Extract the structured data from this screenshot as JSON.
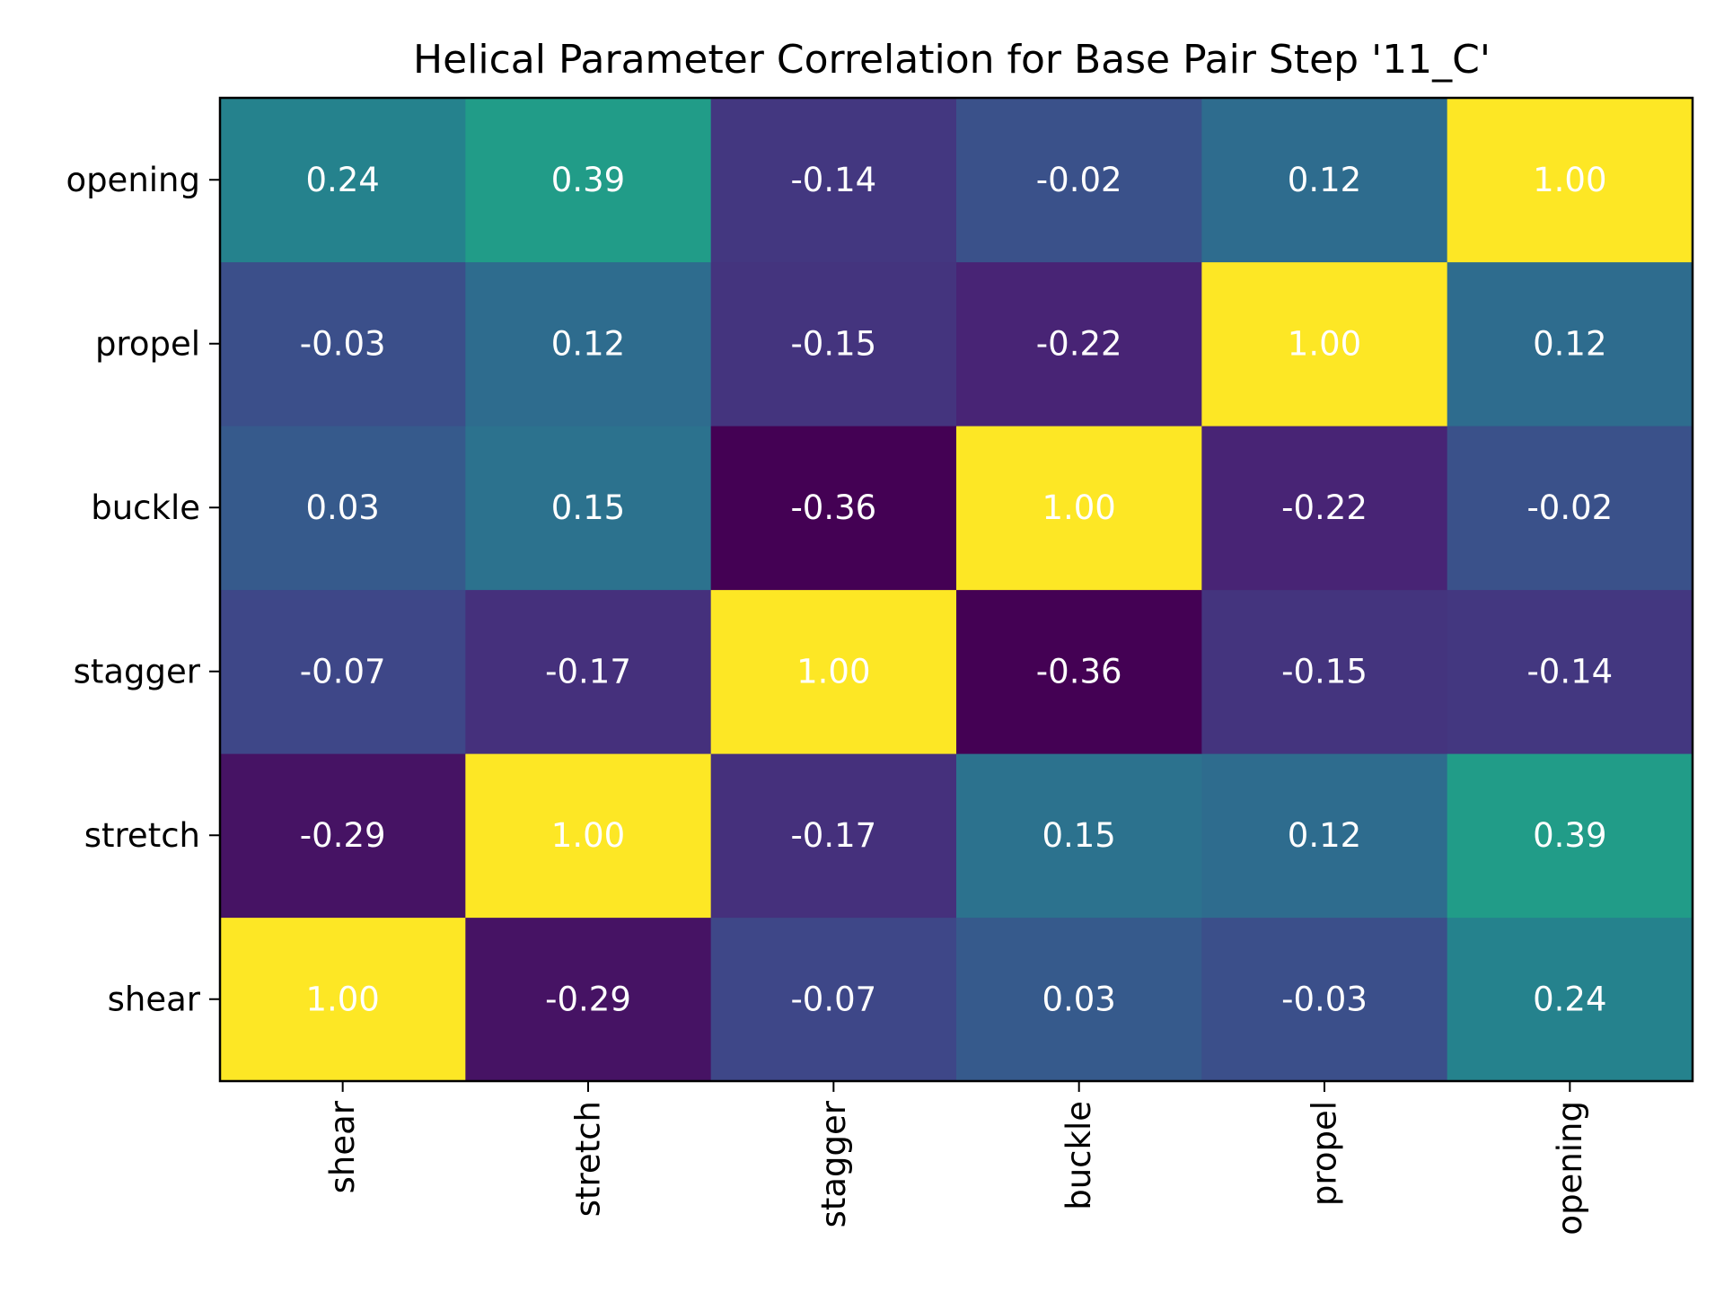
{
  "chart_data": {
    "type": "heatmap",
    "title": "Helical Parameter Correlation for Base Pair Step '11_C'",
    "xlabel": "",
    "ylabel": "",
    "x_categories": [
      "shear",
      "stretch",
      "stagger",
      "buckle",
      "propel",
      "opening"
    ],
    "y_categories": [
      "shear",
      "stretch",
      "stagger",
      "buckle",
      "propel",
      "opening"
    ],
    "y_order": "bottom-to-top",
    "colormap": "viridis",
    "color_range": [
      -0.36,
      1.0
    ],
    "grid": false,
    "legend": "none",
    "values": [
      [
        1.0,
        -0.29,
        -0.07,
        0.03,
        -0.03,
        0.24
      ],
      [
        -0.29,
        1.0,
        -0.17,
        0.15,
        0.12,
        0.39
      ],
      [
        -0.07,
        -0.17,
        1.0,
        -0.36,
        -0.15,
        -0.14
      ],
      [
        0.03,
        0.15,
        -0.36,
        1.0,
        -0.22,
        -0.02
      ],
      [
        -0.03,
        0.12,
        -0.15,
        -0.22,
        1.0,
        0.12
      ],
      [
        0.24,
        0.39,
        -0.14,
        -0.02,
        0.12,
        1.0
      ]
    ]
  }
}
